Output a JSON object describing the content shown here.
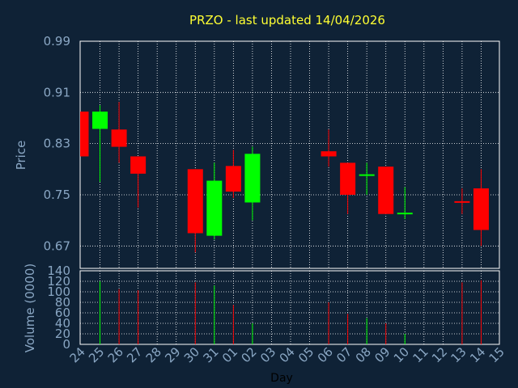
{
  "chart_data": {
    "type": "candlestick",
    "title": "PRZO - last updated 14/04/2026",
    "xlabel": "Day",
    "ylabel": "Price",
    "volume_label": "Volume (0000)",
    "categories": [
      "24",
      "25",
      "26",
      "27",
      "28",
      "29",
      "30",
      "31",
      "01",
      "02",
      "03",
      "04",
      "05",
      "06",
      "07",
      "08",
      "09",
      "10",
      "11",
      "12",
      "13",
      "14",
      "15"
    ],
    "price_ticks": [
      0.99,
      0.91,
      0.83,
      0.75,
      0.67
    ],
    "price_tick_labels": [
      "0.99",
      "0.91",
      "0.83",
      "0.75",
      "0.67"
    ],
    "price_range": [
      0.635,
      0.99
    ],
    "volume_ticks": [
      0,
      20,
      40,
      60,
      80,
      100,
      120,
      140
    ],
    "volume_tick_labels": [
      "0",
      "20",
      "40",
      "60",
      "80",
      "100",
      "120",
      "140"
    ],
    "volume_range": [
      0,
      140
    ],
    "grid": true,
    "colors": {
      "up": "#00ff00",
      "down": "#ff0000",
      "background": "#0f2236",
      "title": "#ffff33",
      "axis_text": "#8aa7c4",
      "grid": "#ffffff"
    },
    "candles": [
      {
        "day": "24",
        "open": 0.88,
        "high": 0.88,
        "low": 0.81,
        "close": 0.81,
        "volume": 0
      },
      {
        "day": "25",
        "open": 0.853,
        "high": 0.89,
        "low": 0.77,
        "close": 0.88,
        "volume": 120
      },
      {
        "day": "26",
        "open": 0.852,
        "high": 0.895,
        "low": 0.8,
        "close": 0.825,
        "volume": 105
      },
      {
        "day": "27",
        "open": 0.81,
        "high": 0.81,
        "low": 0.73,
        "close": 0.783,
        "volume": 103
      },
      {
        "day": "30",
        "open": 0.79,
        "high": 0.79,
        "low": 0.66,
        "close": 0.69,
        "volume": 118
      },
      {
        "day": "31",
        "open": 0.686,
        "high": 0.8,
        "low": 0.68,
        "close": 0.772,
        "volume": 112
      },
      {
        "day": "01",
        "open": 0.795,
        "high": 0.82,
        "low": 0.745,
        "close": 0.755,
        "volume": 75
      },
      {
        "day": "02",
        "open": 0.738,
        "high": 0.825,
        "low": 0.71,
        "close": 0.814,
        "volume": 40
      },
      {
        "day": "06",
        "open": 0.818,
        "high": 0.852,
        "low": 0.794,
        "close": 0.81,
        "volume": 80
      },
      {
        "day": "07",
        "open": 0.8,
        "high": 0.8,
        "low": 0.72,
        "close": 0.75,
        "volume": 58
      },
      {
        "day": "08",
        "open": 0.78,
        "high": 0.8,
        "low": 0.75,
        "close": 0.782,
        "volume": 50
      },
      {
        "day": "09",
        "open": 0.794,
        "high": 0.794,
        "low": 0.72,
        "close": 0.72,
        "volume": 40
      },
      {
        "day": "10",
        "open": 0.72,
        "high": 0.762,
        "low": 0.712,
        "close": 0.722,
        "volume": 20
      },
      {
        "day": "13",
        "open": 0.74,
        "high": 0.76,
        "low": 0.72,
        "close": 0.738,
        "volume": 118
      },
      {
        "day": "14",
        "open": 0.76,
        "high": 0.79,
        "low": 0.67,
        "close": 0.695,
        "volume": 122
      }
    ]
  }
}
